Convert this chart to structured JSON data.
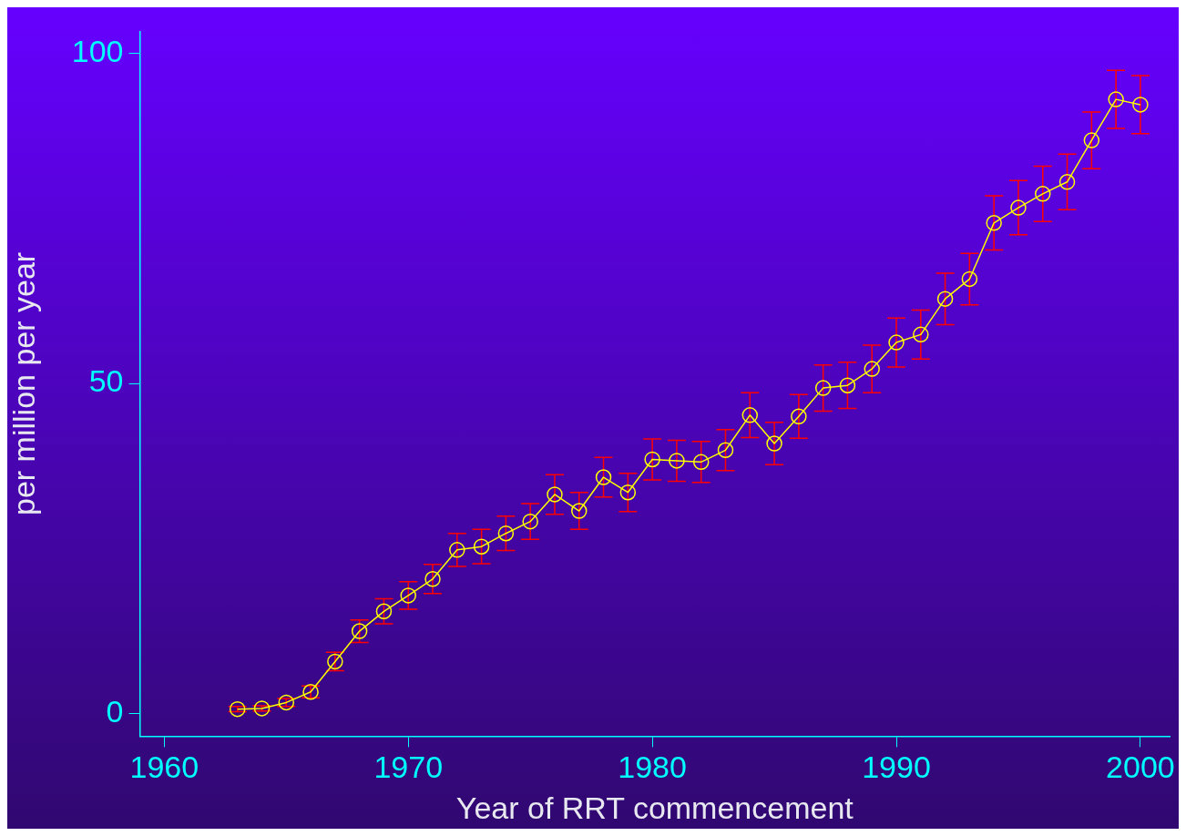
{
  "chart_data": {
    "type": "line",
    "xlabel": "Year of RRT commencement",
    "ylabel": "per million per year",
    "x": [
      1963,
      1964,
      1965,
      1966,
      1967,
      1968,
      1969,
      1970,
      1971,
      1972,
      1973,
      1974,
      1975,
      1976,
      1977,
      1978,
      1979,
      1980,
      1981,
      1982,
      1983,
      1984,
      1985,
      1986,
      1987,
      1988,
      1989,
      1990,
      1991,
      1992,
      1993,
      1994,
      1995,
      1996,
      1997,
      1998,
      1999,
      2000
    ],
    "series": [
      {
        "color": "#ffff00",
        "values": [
          0.7,
          0.8,
          1.7,
          3.3,
          7.9,
          12.5,
          15.5,
          17.9,
          20.4,
          24.8,
          25.3,
          27.3,
          29.1,
          33.2,
          30.7,
          35.8,
          33.5,
          38.5,
          38.3,
          38.1,
          39.9,
          45.2,
          40.9,
          45.0,
          49.3,
          49.7,
          52.2,
          56.2,
          57.4,
          62.8,
          65.8,
          74.3,
          76.6,
          78.7,
          80.5,
          86.8,
          93.0,
          92.2
        ],
        "errors": [
          0.4,
          0.4,
          0.6,
          0.9,
          1.4,
          1.7,
          1.9,
          2.1,
          2.2,
          2.5,
          2.6,
          2.6,
          2.7,
          3.0,
          2.8,
          3.0,
          2.9,
          3.1,
          3.1,
          3.1,
          3.1,
          3.4,
          3.2,
          3.3,
          3.5,
          3.5,
          3.6,
          3.7,
          3.7,
          3.9,
          3.9,
          4.1,
          4.1,
          4.2,
          4.2,
          4.3,
          4.4,
          4.4
        ]
      }
    ],
    "xlim": [
      1959,
      2001.2
    ],
    "xticks": [
      1960,
      1970,
      1980,
      1990,
      2000
    ],
    "ylim": [
      -3.4,
      103.3
    ],
    "yticks": [
      0,
      50,
      100
    ],
    "grid": false,
    "legend": false,
    "marker": "circle",
    "line_style": "solid"
  }
}
